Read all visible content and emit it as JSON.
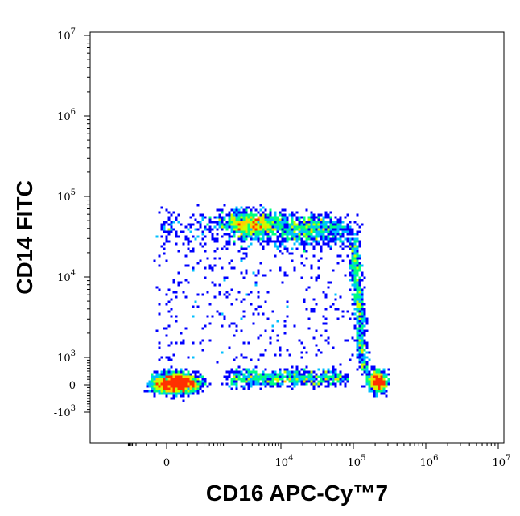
{
  "chart_data": {
    "type": "scatter",
    "style": "flow-cytometry-density-dot-plot",
    "xlabel": "CD16 APC-Cy™7",
    "ylabel": "CD14 FITC",
    "x_scale": "biexponential",
    "y_scale": "biexponential",
    "xlim": [
      -2000,
      10000000
    ],
    "ylim": [
      -3000,
      15000000
    ],
    "x_ticks": [
      {
        "value": 0,
        "label": "0"
      },
      {
        "value": 10000,
        "base": "10",
        "exp": "4"
      },
      {
        "value": 100000,
        "base": "10",
        "exp": "5"
      },
      {
        "value": 1000000,
        "base": "10",
        "exp": "6"
      },
      {
        "value": 10000000,
        "base": "10",
        "exp": "7"
      }
    ],
    "y_ticks": [
      {
        "value": -1000,
        "base": "-10",
        "exp": "3"
      },
      {
        "value": 0,
        "label": "0"
      },
      {
        "value": 1000,
        "base": "10",
        "exp": "3"
      },
      {
        "value": 10000,
        "base": "10",
        "exp": "4"
      },
      {
        "value": 100000,
        "base": "10",
        "exp": "5"
      },
      {
        "value": 1000000,
        "base": "10",
        "exp": "6"
      },
      {
        "value": 10000000,
        "base": "10",
        "exp": "7"
      }
    ],
    "density_colors": [
      "#0000ff",
      "#00bfff",
      "#00ff80",
      "#c8ff00",
      "#ffd000",
      "#ff3000"
    ],
    "populations": [
      {
        "x_center": 100,
        "y_center": 50,
        "density": "highest"
      },
      {
        "x_center": 200000,
        "y_center": 100,
        "density": "high"
      },
      {
        "x_center": 3000,
        "y_center": 45000,
        "density": "high"
      },
      {
        "x_center": 20000,
        "y_center": 40000,
        "density": "medium"
      }
    ],
    "grid": false,
    "legend": "none"
  }
}
